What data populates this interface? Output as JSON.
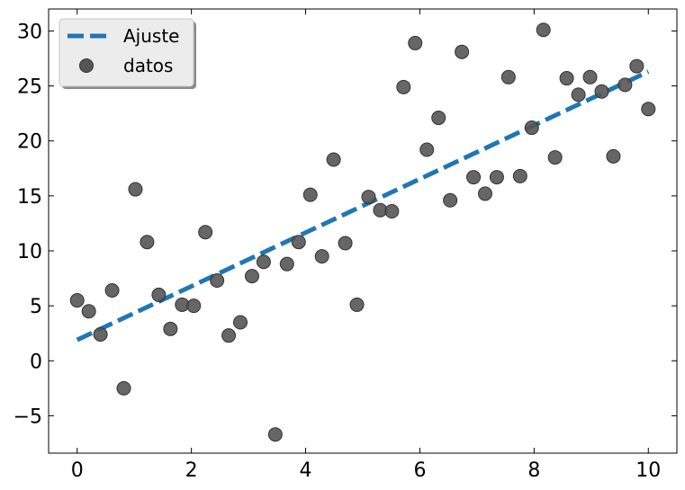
{
  "chart_data": {
    "type": "scatter",
    "xlim": [
      -0.5,
      10.5
    ],
    "ylim": [
      -8.4,
      32
    ],
    "x_ticks": [
      0,
      2,
      4,
      6,
      8,
      10
    ],
    "y_ticks": [
      -5,
      0,
      5,
      10,
      15,
      20,
      25,
      30
    ],
    "grid": false,
    "legend_position": "top-left",
    "series": [
      {
        "name": "Ajuste",
        "kind": "line",
        "style": "dashed",
        "color": "#1f77b4",
        "x": [
          0,
          10
        ],
        "y": [
          1.9,
          26.3
        ]
      },
      {
        "name": "datos",
        "kind": "scatter",
        "color": "#555555",
        "x": [
          0.0,
          0.204,
          0.408,
          0.612,
          0.816,
          1.02,
          1.224,
          1.429,
          1.633,
          1.837,
          2.041,
          2.245,
          2.449,
          2.653,
          2.857,
          3.061,
          3.265,
          3.469,
          3.673,
          3.878,
          4.082,
          4.286,
          4.49,
          4.694,
          4.898,
          5.102,
          5.306,
          5.51,
          5.714,
          5.918,
          6.122,
          6.327,
          6.531,
          6.735,
          6.939,
          7.143,
          7.347,
          7.551,
          7.755,
          7.959,
          8.163,
          8.367,
          8.571,
          8.776,
          8.98,
          9.184,
          9.388,
          9.592,
          9.796,
          10.0
        ],
        "y": [
          5.5,
          4.5,
          2.4,
          6.4,
          -2.5,
          15.6,
          10.8,
          6.0,
          2.9,
          5.1,
          5.0,
          11.7,
          7.3,
          2.3,
          3.5,
          7.7,
          9.0,
          -6.7,
          8.8,
          10.8,
          15.1,
          9.5,
          18.3,
          10.7,
          5.1,
          14.9,
          13.7,
          13.6,
          24.9,
          28.9,
          19.2,
          22.1,
          14.6,
          28.1,
          16.7,
          15.2,
          16.7,
          25.8,
          16.8,
          21.2,
          30.1,
          18.5,
          25.7,
          24.2,
          25.8,
          24.5,
          18.6,
          25.1,
          26.8,
          22.9
        ]
      }
    ]
  }
}
